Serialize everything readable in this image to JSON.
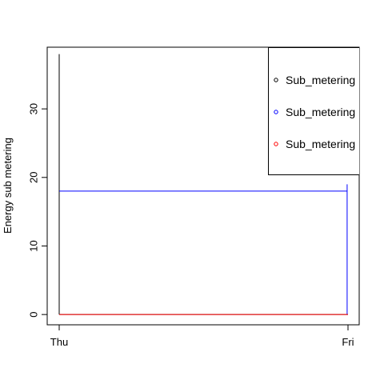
{
  "chart_data": {
    "type": "line",
    "title": "",
    "xlabel": "",
    "ylabel": "Energy sub metering",
    "x_tick_labels": [
      "Thu",
      "Fri"
    ],
    "x": [
      0,
      1
    ],
    "ylim": [
      -1.5,
      39
    ],
    "y_ticks": [
      0,
      10,
      20,
      30
    ],
    "y_tick_labels": [
      "0",
      "10",
      "20",
      "30"
    ],
    "legend_placement": "top-right",
    "legend_visible_text": [
      "Sub_metering",
      "Sub_metering",
      "Sub_metering"
    ],
    "series": [
      {
        "color": "#000000",
        "spikes": [
          {
            "x": 0.0,
            "y_top": 38
          },
          {
            "x": 0.998,
            "y_top": 0
          }
        ],
        "baseline": 0
      },
      {
        "color": "#0000ff",
        "points": [
          [
            0,
            18
          ],
          [
            0.997,
            18
          ]
        ],
        "drop": {
          "x": 0.997,
          "y_top": 19
        }
      },
      {
        "color": "#ff0000",
        "points": [
          [
            0,
            0
          ],
          [
            1,
            0
          ]
        ]
      }
    ]
  }
}
